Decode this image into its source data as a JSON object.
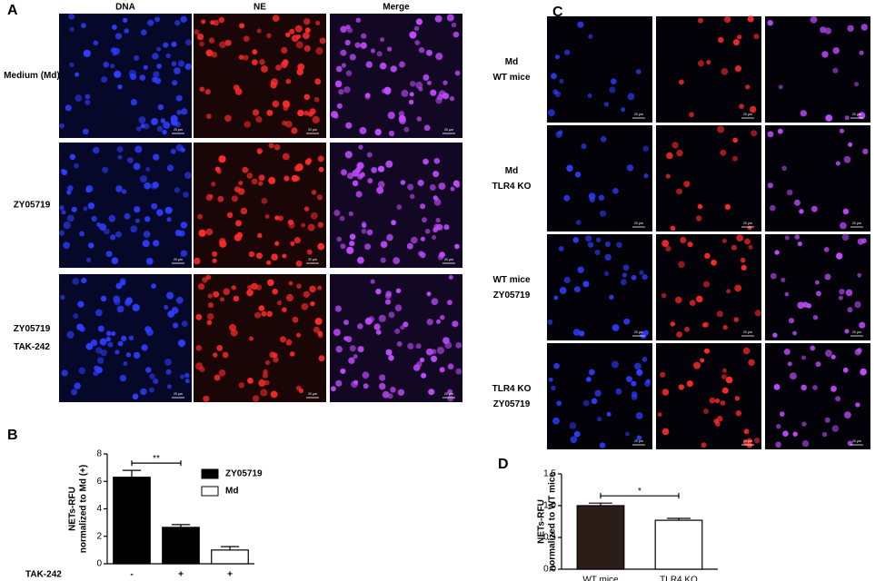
{
  "panel_a": {
    "label": "A",
    "columns": [
      "DNA",
      "NE",
      "Merge"
    ],
    "rows": [
      [
        "Medium (Md)"
      ],
      [
        "ZY05719"
      ],
      [
        "ZY05719",
        "TAK-242"
      ]
    ],
    "scale_bar": "20 μm"
  },
  "panel_c": {
    "label": "C",
    "rows": [
      [
        "Md",
        "WT mice"
      ],
      [
        "Md",
        "TLR4 KO"
      ],
      [
        "WT mice",
        "ZY05719"
      ],
      [
        "TLR4 KO",
        "ZY05719"
      ]
    ],
    "scale_bar": "20 μm"
  },
  "chart_data": [
    {
      "type": "bar",
      "panel_label": "B",
      "ylabel": [
        "NETs-RFU",
        "normalized to Md (+)"
      ],
      "categories": [
        "-",
        "+",
        "+"
      ],
      "category_axis_label": "TAK-242",
      "series": [
        {
          "name": "ZY05719",
          "color": "#000000",
          "values": [
            6.3,
            2.65,
            null
          ],
          "errors": [
            0.5,
            0.2,
            null
          ]
        },
        {
          "name": "Md",
          "color": "#ffffff",
          "values": [
            null,
            null,
            1.0
          ],
          "errors": [
            null,
            null,
            0.25
          ]
        }
      ],
      "ylim": [
        0,
        8
      ],
      "yticks": [
        0,
        2,
        4,
        6,
        8
      ],
      "significance": "**"
    },
    {
      "type": "bar",
      "panel_label": "D",
      "ylabel": [
        "NETs-RFU",
        "normalized to WT mice"
      ],
      "categories": [
        "WT mice",
        "TLR4 KO"
      ],
      "values": [
        1.0,
        0.77
      ],
      "errors": [
        0.04,
        0.03
      ],
      "colors": [
        "#2b1d17",
        "#ffffff"
      ],
      "ylim": [
        0,
        1.5
      ],
      "yticks": [
        {
          "value": 0,
          "label": "0.0"
        },
        0.5,
        {
          "value": 1,
          "label": "1.0"
        },
        1.5
      ],
      "significance": "*"
    }
  ]
}
